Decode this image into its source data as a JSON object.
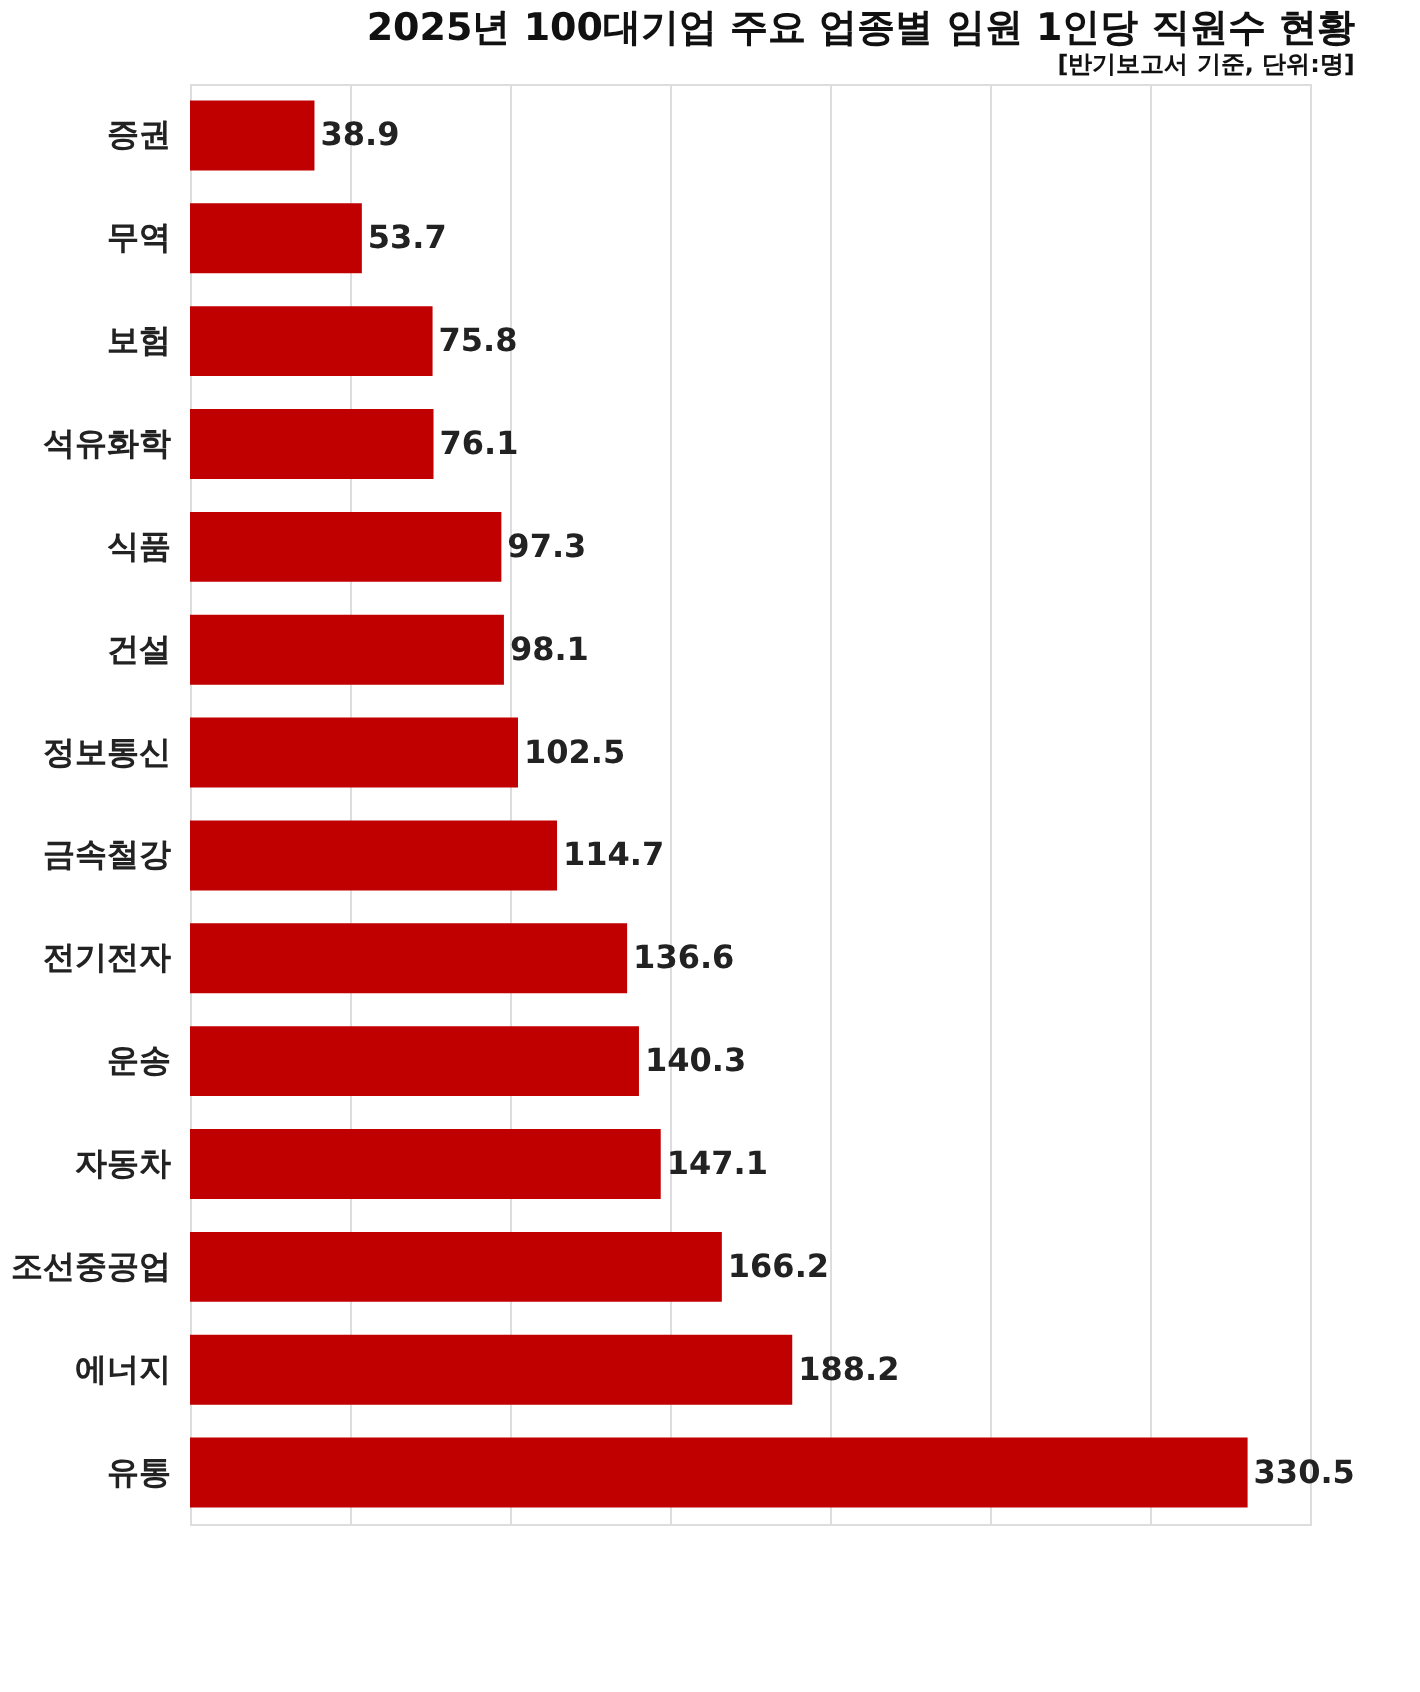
{
  "chart_data": {
    "type": "bar",
    "orientation": "horizontal",
    "title": "2025년 100대기업 주요 업종별 임원 1인당 직원수 현황",
    "subtitle": "[반기보고서 기준, 단위:명]",
    "categories": [
      "증권",
      "무역",
      "보험",
      "석유화학",
      "식품",
      "건설",
      "정보통신",
      "금속철강",
      "전기전자",
      "운송",
      "자동차",
      "조선중공업",
      "에너지",
      "유통"
    ],
    "values": [
      38.9,
      53.7,
      75.8,
      76.1,
      97.3,
      98.1,
      102.5,
      114.7,
      136.6,
      140.3,
      147.1,
      166.2,
      188.2,
      330.5
    ],
    "color": "#c00000",
    "xlim": [
      0,
      350
    ],
    "xticks": [
      {
        "value": 0,
        "label": null
      },
      {
        "value": 50,
        "label": null
      },
      {
        "value": 100,
        "label": null
      },
      {
        "value": 150,
        "label": null
      },
      {
        "value": 200,
        "label": null
      },
      {
        "value": 250,
        "label": null
      },
      {
        "value": 300,
        "label": null
      },
      {
        "value": 350,
        "label": null
      }
    ],
    "tick_labels": "y",
    "grid": "x",
    "data_labels": true
  }
}
